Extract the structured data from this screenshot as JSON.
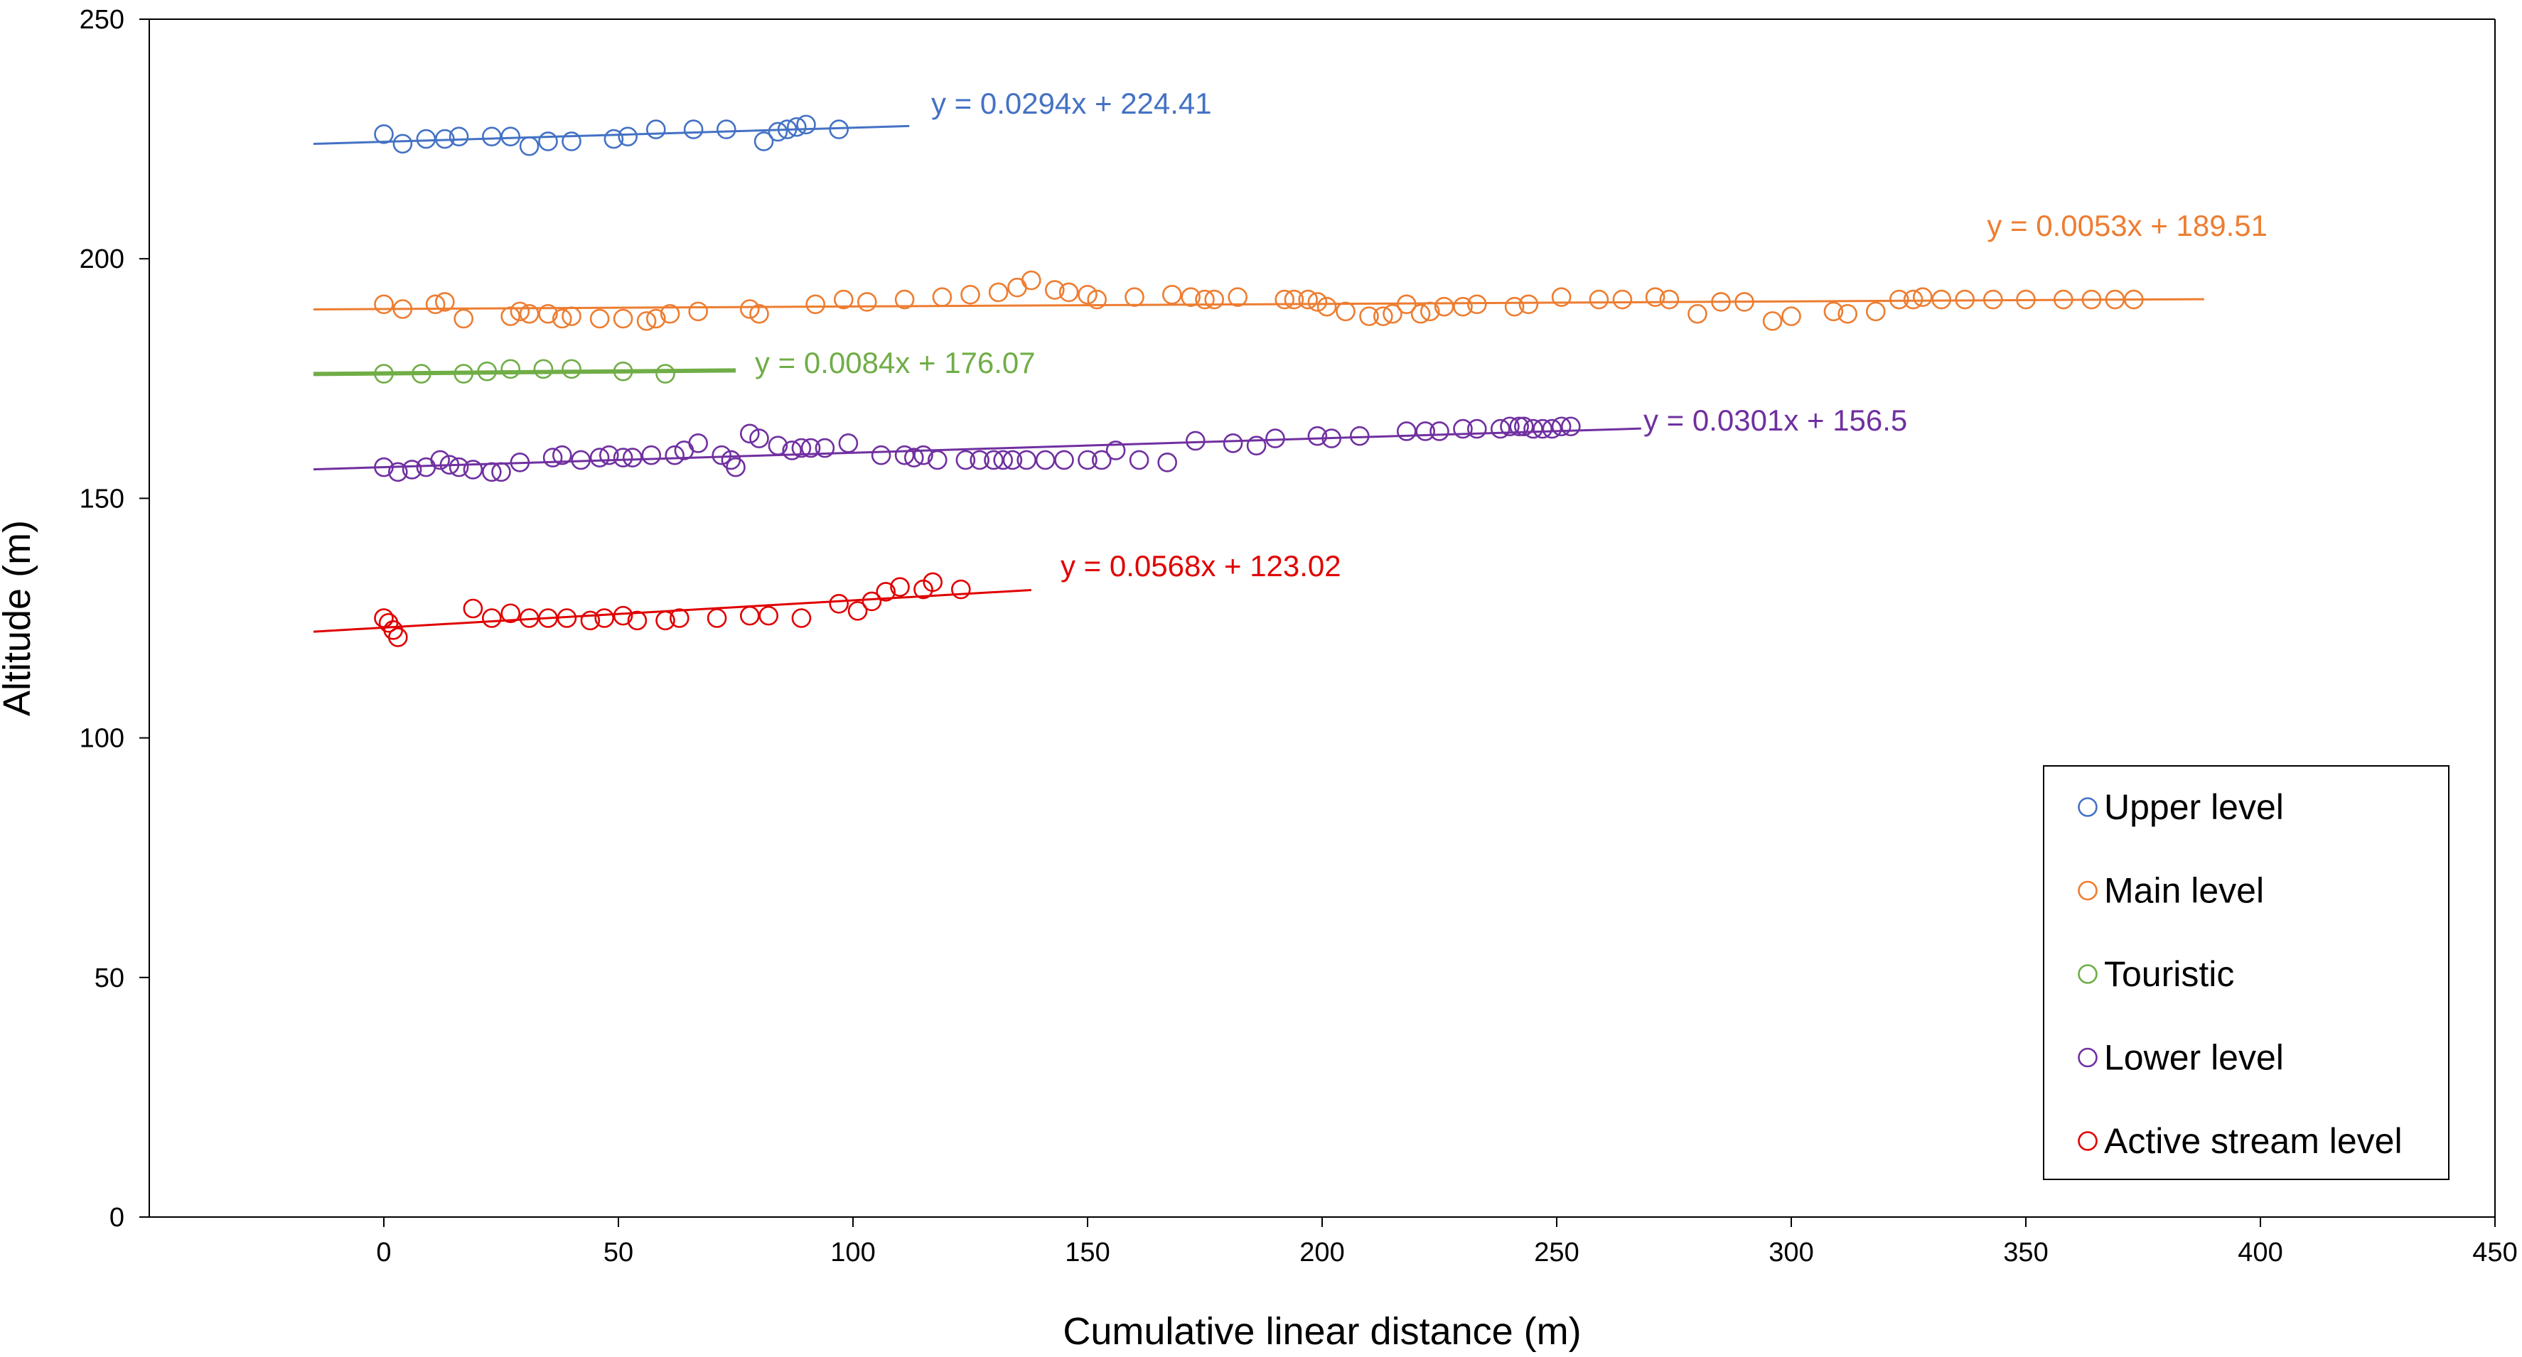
{
  "chart_data": {
    "type": "scatter",
    "xlabel": "Cumulative linear distance (m)",
    "ylabel": "Altitude (m)",
    "xlim": [
      -50,
      450
    ],
    "ylim": [
      0,
      250
    ],
    "x_ticks": [
      0,
      50,
      100,
      150,
      200,
      250,
      300,
      350,
      400,
      450
    ],
    "y_ticks": [
      0,
      50,
      100,
      150,
      200,
      250
    ],
    "grid": false,
    "legend_position": "bottom-right",
    "series": [
      {
        "name": "Upper level",
        "color": "#4472C4",
        "trendline": {
          "equation": "y = 0.0294x + 224.41",
          "slope": 0.0294,
          "intercept": 224.41,
          "x_range": [
            -15,
            112
          ]
        },
        "points": [
          [
            0,
            226
          ],
          [
            4,
            224
          ],
          [
            9,
            225
          ],
          [
            13,
            225
          ],
          [
            16,
            225.5
          ],
          [
            23,
            225.5
          ],
          [
            27,
            225.5
          ],
          [
            31,
            223.5
          ],
          [
            35,
            224.5
          ],
          [
            40,
            224.5
          ],
          [
            49,
            225
          ],
          [
            52,
            225.5
          ],
          [
            58,
            227
          ],
          [
            66,
            227
          ],
          [
            73,
            227
          ],
          [
            81,
            224.5
          ],
          [
            84,
            226.5
          ],
          [
            86,
            227
          ],
          [
            88,
            227.5
          ],
          [
            90,
            228
          ],
          [
            97,
            227
          ]
        ]
      },
      {
        "name": "Main level",
        "color": "#ED7D31",
        "trendline": {
          "equation": "y = 0.0053x + 189.51",
          "slope": 0.0053,
          "intercept": 189.51,
          "x_range": [
            -15,
            388
          ]
        },
        "points": [
          [
            0,
            190.5
          ],
          [
            4,
            189.5
          ],
          [
            11,
            190.5
          ],
          [
            13,
            191
          ],
          [
            17,
            187.5
          ],
          [
            27,
            188
          ],
          [
            29,
            189
          ],
          [
            31,
            188.5
          ],
          [
            35,
            188.5
          ],
          [
            38,
            187.5
          ],
          [
            40,
            188
          ],
          [
            46,
            187.5
          ],
          [
            51,
            187.5
          ],
          [
            56,
            187
          ],
          [
            58,
            187.5
          ],
          [
            61,
            188.5
          ],
          [
            67,
            189
          ],
          [
            78,
            189.5
          ],
          [
            80,
            188.5
          ],
          [
            92,
            190.5
          ],
          [
            98,
            191.5
          ],
          [
            103,
            191
          ],
          [
            111,
            191.5
          ],
          [
            119,
            192
          ],
          [
            125,
            192.5
          ],
          [
            131,
            193
          ],
          [
            135,
            194
          ],
          [
            138,
            195.5
          ],
          [
            143,
            193.5
          ],
          [
            146,
            193
          ],
          [
            150,
            192.5
          ],
          [
            152,
            191.5
          ],
          [
            160,
            192
          ],
          [
            168,
            192.5
          ],
          [
            172,
            192
          ],
          [
            175,
            191.5
          ],
          [
            177,
            191.5
          ],
          [
            182,
            192
          ],
          [
            192,
            191.5
          ],
          [
            194,
            191.5
          ],
          [
            197,
            191.5
          ],
          [
            199,
            191
          ],
          [
            201,
            190
          ],
          [
            205,
            189
          ],
          [
            210,
            188
          ],
          [
            213,
            188
          ],
          [
            215,
            188.5
          ],
          [
            218,
            190.5
          ],
          [
            221,
            188.5
          ],
          [
            223,
            189
          ],
          [
            226,
            190
          ],
          [
            230,
            190
          ],
          [
            233,
            190.5
          ],
          [
            241,
            190
          ],
          [
            244,
            190.5
          ],
          [
            251,
            192
          ],
          [
            259,
            191.5
          ],
          [
            264,
            191.5
          ],
          [
            271,
            192
          ],
          [
            274,
            191.5
          ],
          [
            280,
            188.5
          ],
          [
            285,
            191
          ],
          [
            290,
            191
          ],
          [
            296,
            187
          ],
          [
            300,
            188
          ],
          [
            309,
            189
          ],
          [
            312,
            188.5
          ],
          [
            318,
            189
          ],
          [
            323,
            191.5
          ],
          [
            326,
            191.5
          ],
          [
            328,
            192
          ],
          [
            332,
            191.5
          ],
          [
            337,
            191.5
          ],
          [
            343,
            191.5
          ],
          [
            350,
            191.5
          ],
          [
            358,
            191.5
          ],
          [
            364,
            191.5
          ],
          [
            369,
            191.5
          ],
          [
            373,
            191.5
          ]
        ]
      },
      {
        "name": "Touristic",
        "color": "#70AD47",
        "trendline": {
          "equation": "y = 0.0084x + 176.07",
          "slope": 0.0084,
          "intercept": 176.07,
          "x_range": [
            -15,
            75
          ]
        },
        "points": [
          [
            0,
            176
          ],
          [
            8,
            176
          ],
          [
            17,
            176
          ],
          [
            22,
            176.5
          ],
          [
            27,
            177
          ],
          [
            34,
            177
          ],
          [
            40,
            177
          ],
          [
            51,
            176.5
          ],
          [
            60,
            176
          ]
        ]
      },
      {
        "name": "Lower level",
        "color": "#7030A0",
        "trendline": {
          "equation": "y = 0.0301x + 156.5",
          "slope": 0.0301,
          "intercept": 156.5,
          "x_range": [
            -15,
            268
          ]
        },
        "points": [
          [
            0,
            156.5
          ],
          [
            3,
            155.5
          ],
          [
            6,
            156
          ],
          [
            9,
            156.5
          ],
          [
            12,
            158
          ],
          [
            14,
            157
          ],
          [
            16,
            156.5
          ],
          [
            19,
            156
          ],
          [
            23,
            155.5
          ],
          [
            25,
            155.5
          ],
          [
            29,
            157.5
          ],
          [
            36,
            158.5
          ],
          [
            38,
            159
          ],
          [
            42,
            158
          ],
          [
            46,
            158.5
          ],
          [
            48,
            159
          ],
          [
            51,
            158.5
          ],
          [
            53,
            158.5
          ],
          [
            57,
            159
          ],
          [
            62,
            159
          ],
          [
            64,
            160
          ],
          [
            67,
            161.5
          ],
          [
            72,
            159
          ],
          [
            74,
            158
          ],
          [
            75,
            156.5
          ],
          [
            78,
            163.5
          ],
          [
            80,
            162.5
          ],
          [
            84,
            161
          ],
          [
            87,
            160
          ],
          [
            89,
            160.5
          ],
          [
            91,
            160.5
          ],
          [
            94,
            160.5
          ],
          [
            99,
            161.5
          ],
          [
            106,
            159
          ],
          [
            111,
            159
          ],
          [
            113,
            158.5
          ],
          [
            115,
            159
          ],
          [
            118,
            158
          ],
          [
            124,
            158
          ],
          [
            127,
            158
          ],
          [
            130,
            158
          ],
          [
            132,
            158
          ],
          [
            134,
            158
          ],
          [
            137,
            158
          ],
          [
            141,
            158
          ],
          [
            145,
            158
          ],
          [
            150,
            158
          ],
          [
            153,
            158
          ],
          [
            156,
            160
          ],
          [
            161,
            158
          ],
          [
            167,
            157.5
          ],
          [
            173,
            162
          ],
          [
            181,
            161.5
          ],
          [
            186,
            161
          ],
          [
            190,
            162.5
          ],
          [
            199,
            163
          ],
          [
            202,
            162.5
          ],
          [
            208,
            163
          ],
          [
            218,
            164
          ],
          [
            222,
            164
          ],
          [
            225,
            164
          ],
          [
            230,
            164.5
          ],
          [
            233,
            164.5
          ],
          [
            238,
            164.5
          ],
          [
            240,
            165
          ],
          [
            242,
            165
          ],
          [
            243,
            165
          ],
          [
            245,
            164.5
          ],
          [
            247,
            164.5
          ],
          [
            249,
            164.5
          ],
          [
            251,
            165
          ],
          [
            253,
            165
          ]
        ]
      },
      {
        "name": "Active stream level",
        "color": "#E00000",
        "trendline": {
          "equation": "y = 0.0568x + 123.02",
          "slope": 0.0568,
          "intercept": 123.02,
          "x_range": [
            -15,
            138
          ]
        },
        "points": [
          [
            0,
            125
          ],
          [
            1,
            124
          ],
          [
            2,
            122.5
          ],
          [
            3,
            121
          ],
          [
            19,
            127
          ],
          [
            23,
            125
          ],
          [
            27,
            126
          ],
          [
            31,
            125
          ],
          [
            35,
            125
          ],
          [
            39,
            125
          ],
          [
            44,
            124.5
          ],
          [
            47,
            125
          ],
          [
            51,
            125.5
          ],
          [
            54,
            124.5
          ],
          [
            60,
            124.5
          ],
          [
            63,
            125
          ],
          [
            71,
            125
          ],
          [
            78,
            125.5
          ],
          [
            82,
            125.5
          ],
          [
            89,
            125
          ],
          [
            97,
            128
          ],
          [
            101,
            126.5
          ],
          [
            104,
            128.5
          ],
          [
            107,
            130.5
          ],
          [
            110,
            131.5
          ],
          [
            115,
            131
          ],
          [
            117,
            132.5
          ],
          [
            123,
            131
          ]
        ]
      }
    ],
    "legend_entries": [
      "Upper level",
      "Main level",
      "Touristic",
      "Lower level",
      "Active stream level"
    ]
  }
}
